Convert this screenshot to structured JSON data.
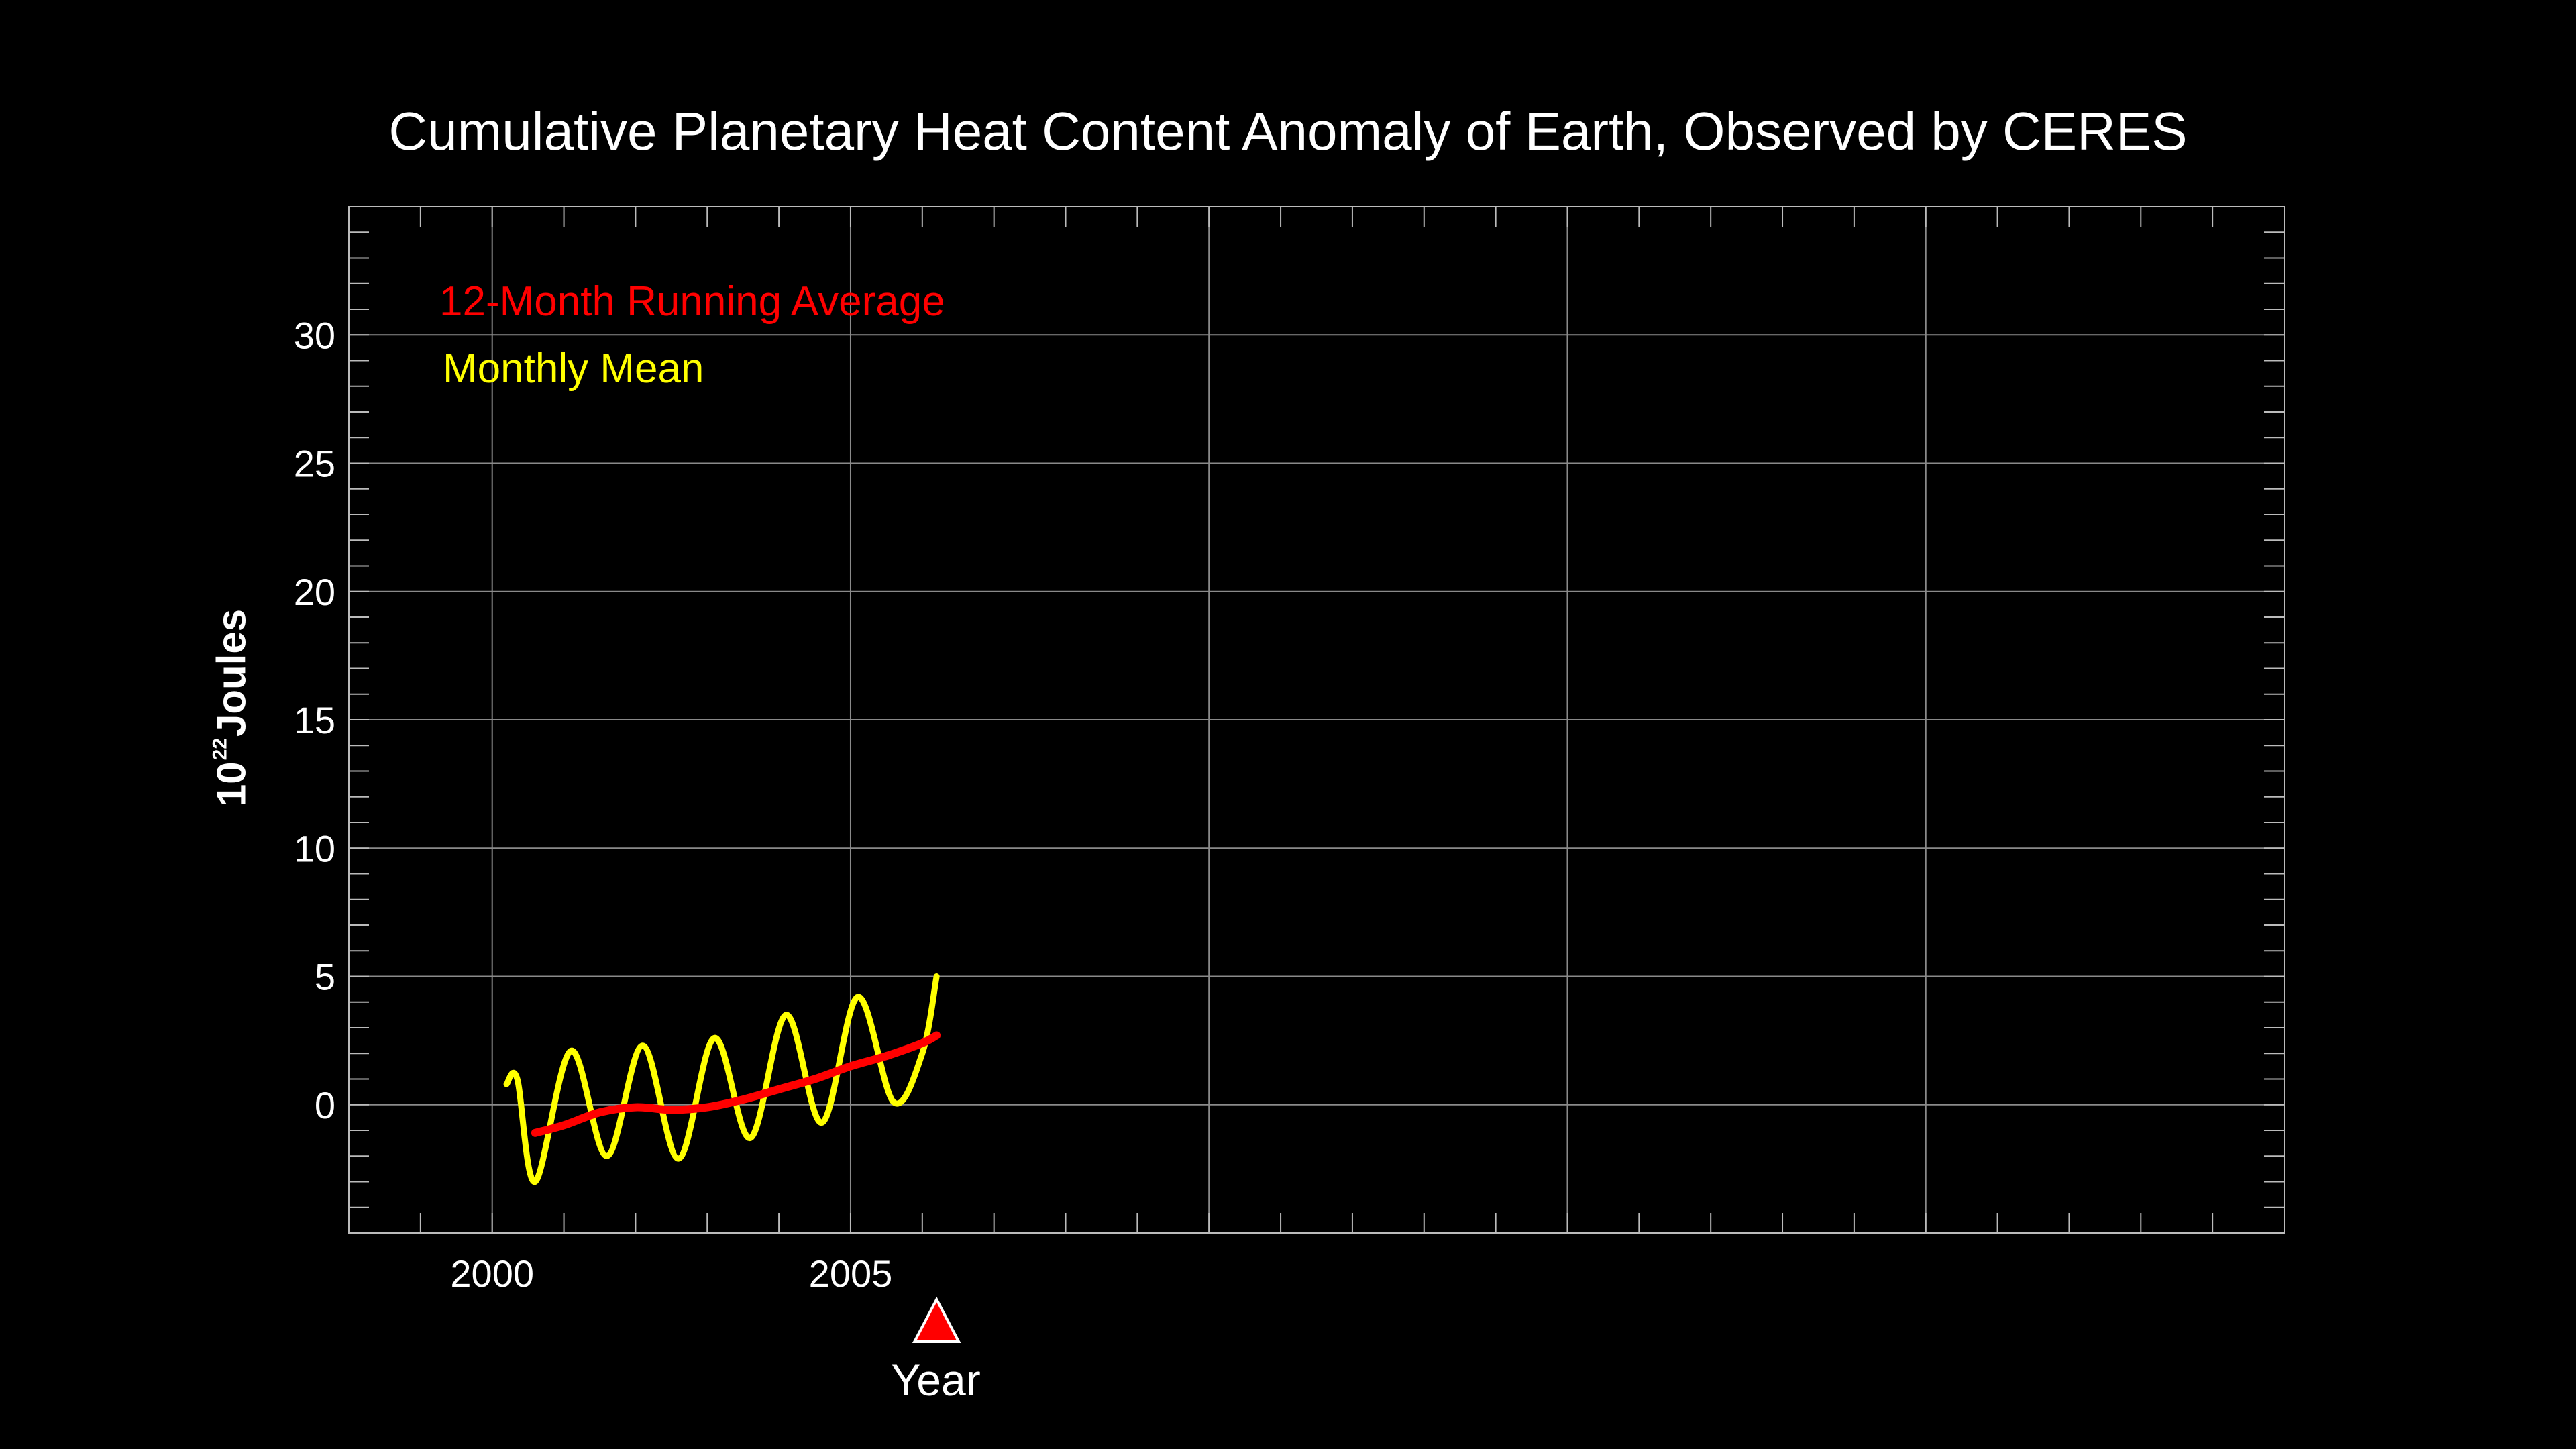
{
  "chart_data": {
    "type": "line",
    "title": "Cumulative Planetary Heat Content Anomaly of Earth, Observed by CERES",
    "xlabel": "Year",
    "ylabel_base": "10",
    "ylabel_exponent": "22",
    "ylabel_unit": "Joules",
    "xlim": [
      1998,
      2025
    ],
    "ylim": [
      -5,
      35
    ],
    "x_ticks": [
      2000,
      2005
    ],
    "x_tick_labels": [
      "2000",
      "2005"
    ],
    "y_ticks": [
      0,
      5,
      10,
      15,
      20,
      25,
      30
    ],
    "y_tick_labels": [
      "0",
      "5",
      "10",
      "15",
      "20",
      "25",
      "30"
    ],
    "x_gridlines": [
      2000,
      2005,
      2010,
      2015,
      2020
    ],
    "y_gridlines": [
      0,
      5,
      10,
      15,
      20,
      25,
      30
    ],
    "grid": true,
    "legend_position": "top-left",
    "current_marker_x": 2006.2,
    "series": [
      {
        "name": "12-Month Running Average",
        "color": "#ff0000",
        "x": [
          2000.6,
          2001.0,
          2001.5,
          2002.0,
          2002.5,
          2003.0,
          2003.5,
          2004.0,
          2004.5,
          2005.0,
          2005.5,
          2006.0,
          2006.2
        ],
        "y": [
          -1.1,
          -0.8,
          -0.3,
          -0.1,
          -0.2,
          -0.1,
          0.2,
          0.6,
          1.0,
          1.5,
          1.9,
          2.4,
          2.7
        ]
      },
      {
        "name": "Monthly Mean",
        "color": "#ffff00",
        "x": [
          2000.2,
          2000.35,
          2000.6,
          2001.1,
          2001.6,
          2002.1,
          2002.6,
          2003.1,
          2003.6,
          2004.1,
          2004.6,
          2005.1,
          2005.6,
          2006.0,
          2006.2
        ],
        "y": [
          0.8,
          1.0,
          -3.0,
          2.1,
          -2.0,
          2.3,
          -2.1,
          2.6,
          -1.3,
          3.5,
          -0.7,
          4.2,
          0.1,
          2.0,
          5.0
        ]
      }
    ]
  }
}
